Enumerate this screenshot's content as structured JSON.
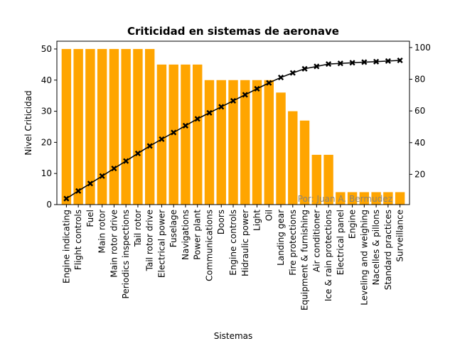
{
  "chart_data": {
    "type": "bar",
    "title": "Criticidad en sistemas de aeronave",
    "xlabel": "Sistemas",
    "ylabel": "Nivel Criticidad",
    "ylim": [
      0,
      52.5
    ],
    "yticks": [
      0,
      10,
      20,
      30,
      40,
      50
    ],
    "y2lim": [
      0.9,
      104
    ],
    "y2ticks": [
      20,
      40,
      60,
      80,
      100
    ],
    "grid": false,
    "categories": [
      "Engine indicating",
      "Flight controls",
      "Fuel",
      "Main rotor",
      "Main rotor drive",
      "Periodics inspections",
      "Tail rotor",
      "Tail rotor drive",
      "Electrical power",
      "Fuselage",
      "Navigations",
      "Power plant",
      "Communications",
      "Doors",
      "Engine controls",
      "Hidraulic power",
      "Light",
      "Oil",
      "Landing gear",
      "Fire protections",
      "Equipment & furnishing",
      "Air conditioner",
      "Ice & rain protections",
      "Electrical panel",
      "Engine",
      "Leveling and weighing",
      "Nacelles & pillons",
      "Standard practices",
      "Surveillance"
    ],
    "series": [
      {
        "kind": "bar",
        "axis": "left",
        "color": "#FFA500",
        "values": [
          50,
          50,
          50,
          50,
          50,
          50,
          50,
          50,
          45,
          45,
          45,
          45,
          40,
          40,
          40,
          40,
          40,
          40,
          36,
          30,
          27,
          16,
          16,
          4,
          4,
          4,
          4,
          4,
          4
        ]
      },
      {
        "kind": "line",
        "axis": "right",
        "color": "#000000",
        "marker": "x",
        "values": [
          4.7,
          9.5,
          14.2,
          18.9,
          23.7,
          28.4,
          33.2,
          37.9,
          42.2,
          46.4,
          50.7,
          55.0,
          58.8,
          62.6,
          66.4,
          70.2,
          74.0,
          77.7,
          81.1,
          84.0,
          86.6,
          88.1,
          89.6,
          90.0,
          90.4,
          90.8,
          91.1,
          91.5,
          91.9
        ]
      }
    ],
    "watermark": "Por: Juan A. Bermudez"
  }
}
